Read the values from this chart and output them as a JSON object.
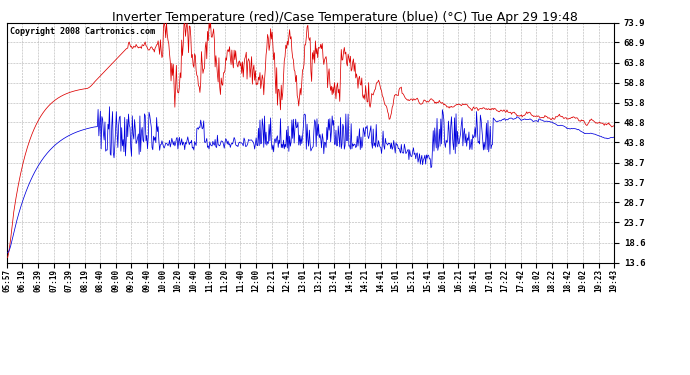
{
  "title": "Inverter Temperature (red)/Case Temperature (blue) (°C) Tue Apr 29 19:48",
  "copyright": "Copyright 2008 Cartronics.com",
  "yticks": [
    13.6,
    18.6,
    23.7,
    28.7,
    33.7,
    38.7,
    43.8,
    48.8,
    53.8,
    58.8,
    63.8,
    68.9,
    73.9
  ],
  "ylim": [
    13.6,
    73.9
  ],
  "xtick_labels": [
    "05:57",
    "06:19",
    "06:39",
    "07:19",
    "07:39",
    "08:19",
    "08:40",
    "09:00",
    "09:20",
    "09:40",
    "10:00",
    "10:20",
    "10:40",
    "11:00",
    "11:20",
    "11:40",
    "12:00",
    "12:21",
    "12:41",
    "13:01",
    "13:21",
    "13:41",
    "14:01",
    "14:21",
    "14:41",
    "15:01",
    "15:21",
    "15:41",
    "16:01",
    "16:21",
    "16:41",
    "17:01",
    "17:22",
    "17:42",
    "18:02",
    "18:22",
    "18:42",
    "19:02",
    "19:23",
    "19:43"
  ],
  "red_color": "#dd0000",
  "blue_color": "#0000dd",
  "bg_color": "#ffffff",
  "grid_color": "#b0b0b0",
  "title_fontsize": 9,
  "copyright_fontsize": 6
}
